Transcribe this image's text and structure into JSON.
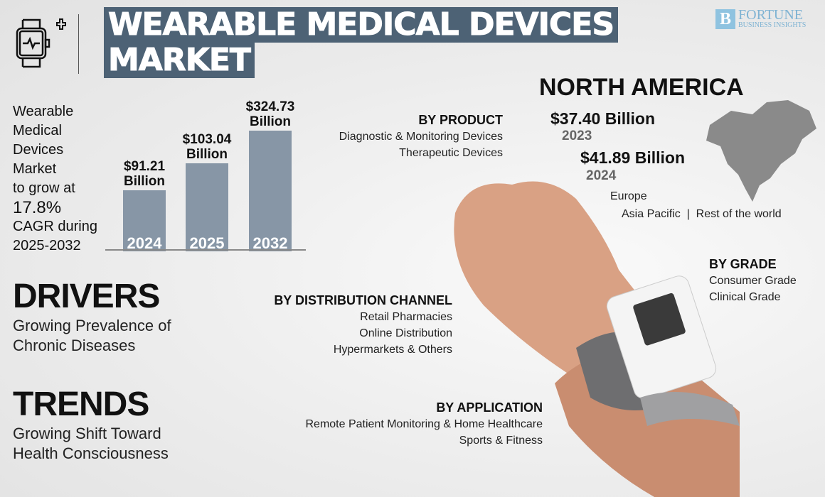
{
  "header": {
    "title_line1": "WEARABLE MEDICAL DEVICES",
    "title_line2": "MARKET",
    "icon": "smartwatch-plus-icon"
  },
  "logo": {
    "name": "FORTUNE",
    "tagline": "BUSINESS INSIGHTS",
    "mark": "B"
  },
  "intro": {
    "lines": [
      "Wearable",
      "Medical",
      "Devices",
      "Market",
      "to grow at"
    ],
    "cagr": "17.8%",
    "lines2": [
      "CAGR during",
      "2025-2032"
    ]
  },
  "chart_data": {
    "type": "bar",
    "categories": [
      "2024",
      "2025",
      "2032"
    ],
    "values": [
      91.21,
      103.04,
      324.73
    ],
    "data_labels": [
      [
        "$91.21",
        "Billion"
      ],
      [
        "$103.04",
        "Billion"
      ],
      [
        "$324.73",
        "Billion"
      ]
    ],
    "unit": "Billion USD",
    "color": "#8796a6"
  },
  "drivers": {
    "heading": "DRIVERS",
    "lines": [
      "Growing Prevalence of",
      "Chronic Diseases"
    ]
  },
  "trends": {
    "heading": "TRENDS",
    "lines": [
      "Growing Shift Toward",
      "Health Consciousness"
    ]
  },
  "by_product": {
    "heading": "BY PRODUCT",
    "items": [
      "Diagnostic & Monitoring Devices",
      "Therapeutic Devices"
    ]
  },
  "by_distribution": {
    "heading": "BY DISTRIBUTION CHANNEL",
    "items": [
      "Retail Pharmacies",
      "Online Distribution",
      "Hypermarkets & Others"
    ]
  },
  "by_application": {
    "heading": "BY APPLICATION",
    "items": [
      "Remote Patient Monitoring & Home Healthcare",
      "Sports & Fitness"
    ]
  },
  "by_grade": {
    "heading": "BY GRADE",
    "items": [
      "Consumer Grade",
      "Clinical Grade"
    ]
  },
  "region": {
    "heading": "NORTH AMERICA",
    "v1": "$37.40 Billion",
    "y1": "2023",
    "v2": "$41.89 Billion",
    "y2": "2024",
    "others1": "Europe",
    "others2": "Asia Pacific  |  Rest of the world"
  }
}
